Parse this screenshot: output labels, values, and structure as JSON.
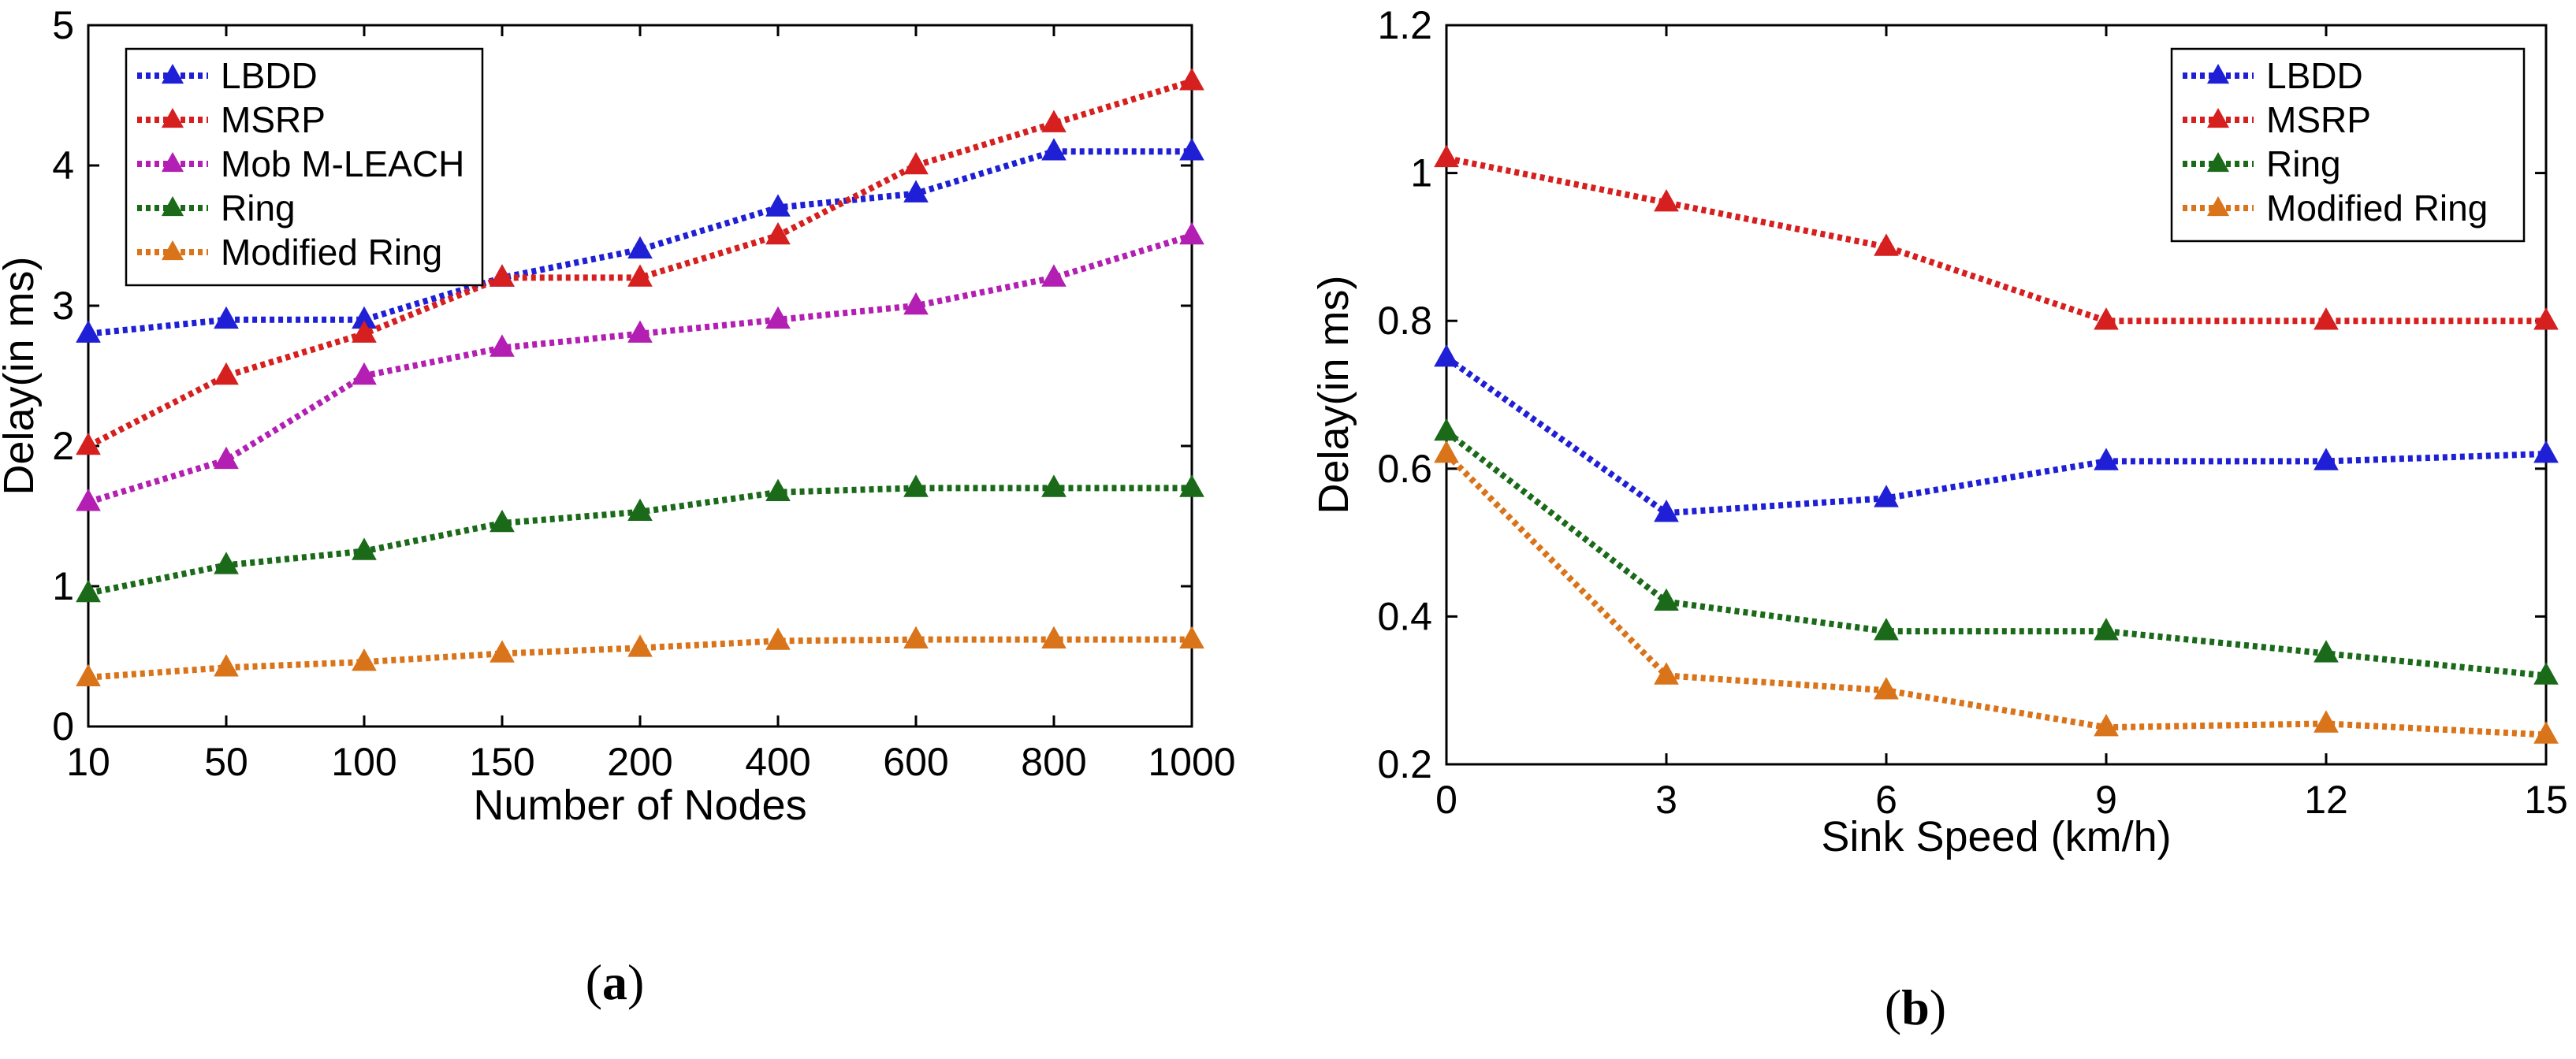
{
  "chart_data": [
    {
      "type": "line",
      "subfigure_label": {
        "open": "(",
        "letter": "a",
        "close": ")"
      },
      "xlabel": "Number of Nodes",
      "ylabel": "Delay(in ms)",
      "categories": [
        "10",
        "50",
        "100",
        "150",
        "200",
        "400",
        "600",
        "800",
        "1000"
      ],
      "ylim": [
        0,
        5
      ],
      "yticks": [
        "0",
        "1",
        "2",
        "3",
        "4",
        "5"
      ],
      "legend_position": "top-left",
      "series": [
        {
          "name": "LBDD",
          "color": "#1f1fd6",
          "values": [
            2.8,
            2.9,
            2.9,
            3.2,
            3.4,
            3.7,
            3.8,
            4.1,
            4.1
          ]
        },
        {
          "name": "MSRP",
          "color": "#d61f1f",
          "values": [
            2.0,
            2.5,
            2.8,
            3.2,
            3.2,
            3.5,
            4.0,
            4.3,
            4.6
          ]
        },
        {
          "name": "Mob M-LEACH",
          "color": "#b21fb2",
          "values": [
            1.6,
            1.9,
            2.5,
            2.7,
            2.8,
            2.9,
            3.0,
            3.2,
            3.5
          ]
        },
        {
          "name": "Ring",
          "color": "#1a6a1a",
          "values": [
            0.95,
            1.15,
            1.25,
            1.45,
            1.53,
            1.67,
            1.7,
            1.7,
            1.7
          ]
        },
        {
          "name": "Modified Ring",
          "color": "#d9741a",
          "values": [
            0.35,
            0.42,
            0.46,
            0.52,
            0.56,
            0.61,
            0.62,
            0.62,
            0.62
          ]
        }
      ]
    },
    {
      "type": "line",
      "subfigure_label": {
        "open": "(",
        "letter": "b",
        "close": ")"
      },
      "xlabel": "Sink Speed (km/h)",
      "ylabel": "Delay(in ms)",
      "x": [
        0,
        3,
        6,
        9,
        12,
        15
      ],
      "xticks": [
        "0",
        "3",
        "6",
        "9",
        "12",
        "15"
      ],
      "xlim": [
        0,
        15
      ],
      "ylim": [
        0.2,
        1.2
      ],
      "yticks": [
        "0.2",
        "0.4",
        "0.6",
        "0.8",
        "1",
        "1.2"
      ],
      "legend_position": "top-right",
      "series": [
        {
          "name": "LBDD",
          "color": "#1f1fd6",
          "values": [
            0.75,
            0.54,
            0.56,
            0.61,
            0.61,
            0.62
          ]
        },
        {
          "name": "MSRP",
          "color": "#d61f1f",
          "values": [
            1.02,
            0.96,
            0.9,
            0.8,
            0.8,
            0.8
          ]
        },
        {
          "name": "Ring",
          "color": "#1a6a1a",
          "values": [
            0.65,
            0.42,
            0.38,
            0.38,
            0.35,
            0.32
          ]
        },
        {
          "name": "Modified Ring",
          "color": "#d9741a",
          "values": [
            0.62,
            0.32,
            0.3,
            0.25,
            0.255,
            0.24
          ]
        }
      ]
    }
  ]
}
